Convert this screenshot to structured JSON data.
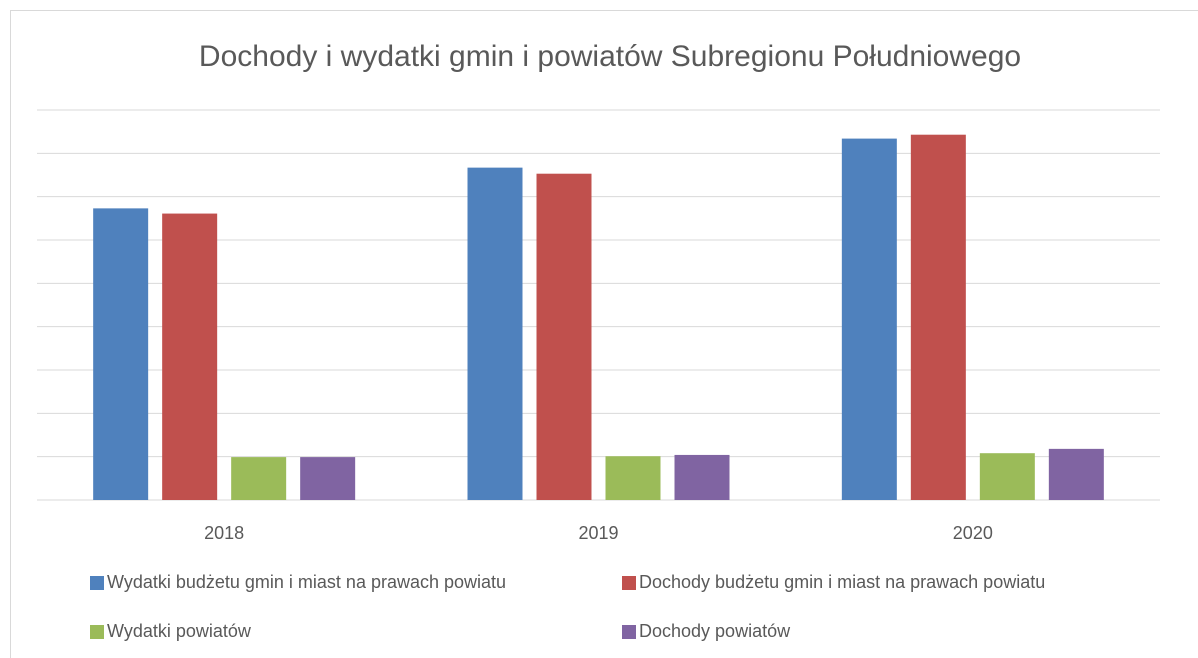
{
  "chart_data": {
    "type": "bar",
    "title": "Dochody i wydatki gmin i powiatów Subregionu Południowego",
    "categories": [
      "2018",
      "2019",
      "2020"
    ],
    "series": [
      {
        "name": "Wydatki budżetu gmin i miast na prawach powiatu",
        "color": "#4f81bd",
        "values": [
          6.73,
          7.67,
          8.34
        ]
      },
      {
        "name": "Dochody budżetu gmin i miast na prawach powiatu",
        "color": "#c0504d",
        "values": [
          6.61,
          7.53,
          8.43
        ]
      },
      {
        "name": "Wydatki powiatów",
        "color": "#9bbb59",
        "values": [
          0.99,
          1.01,
          1.08
        ]
      },
      {
        "name": "Dochody powiatów",
        "color": "#8064a2",
        "values": [
          0.99,
          1.04,
          1.18
        ]
      }
    ],
    "ylim": [
      0,
      9
    ],
    "yticks": [
      0,
      1,
      2,
      3,
      4,
      5,
      6,
      7,
      8,
      9
    ],
    "grid": true
  }
}
